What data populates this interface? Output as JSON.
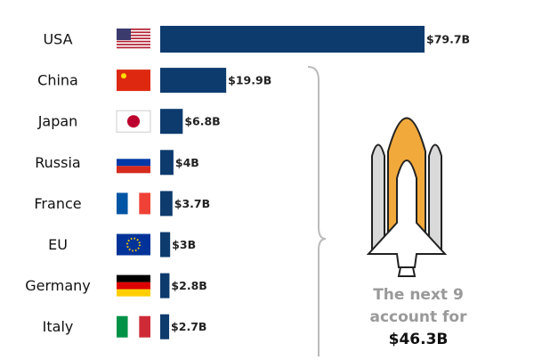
{
  "chart_data": {
    "type": "bar",
    "orientation": "horizontal",
    "categories": [
      "USA",
      "China",
      "Japan",
      "Russia",
      "France",
      "EU",
      "Germany",
      "Italy"
    ],
    "values": [
      79.7,
      19.9,
      6.8,
      4,
      3.7,
      3,
      2.8,
      2.7
    ],
    "value_labels": [
      "$79.7B",
      "$19.9B",
      "$6.8B",
      "$4B",
      "$3.7B",
      "$3B",
      "$2.8B",
      "$2.7B"
    ],
    "color": "#0d3b6e",
    "xlim": [
      0,
      79.7
    ],
    "annotation": [
      "The next 9",
      "account for",
      "$46.3B"
    ]
  }
}
